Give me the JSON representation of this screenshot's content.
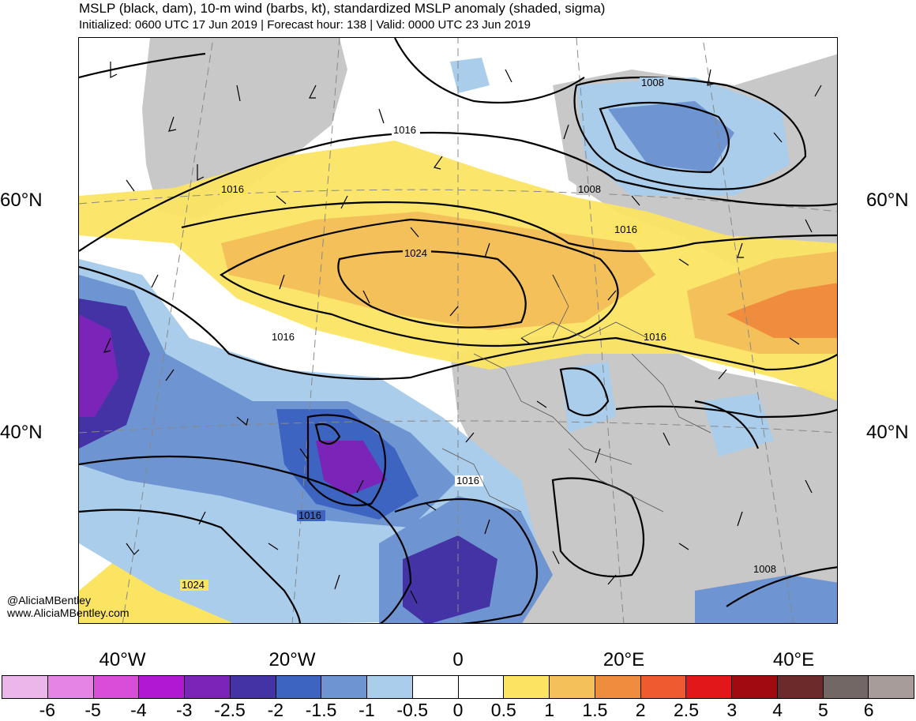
{
  "header": {
    "title": "MSLP (black, dam), 10-m wind (barbs, kt), standardized MSLP anomaly (shaded, sigma)",
    "subtitle": "Initialized: 0600 UTC 17 Jun 2019 | Forecast hour: 138 | Valid: 0000 UTC 23 Jun 2019"
  },
  "map": {
    "credit_handle": "@AliciaMBentley",
    "credit_url": "www.AliciaMBentley.com",
    "lat_labels": [
      "60°N",
      "40°N"
    ],
    "lon_labels": [
      "40°W",
      "20°W",
      "0",
      "20°E",
      "40°E"
    ],
    "isobar_labels": [
      "1008",
      "1016",
      "1016",
      "1008",
      "1024",
      "1016",
      "1016",
      "1016",
      "1016",
      "1016",
      "1024",
      "1008"
    ],
    "land_color": "#c8c8c8"
  },
  "colorbar": {
    "colors": [
      "#ebb6ea",
      "#e485e4",
      "#d94ed8",
      "#b118d2",
      "#7a24b8",
      "#4333a5",
      "#3e64c2",
      "#6e95d2",
      "#a9cdea",
      "#ffffff",
      "#ffffff",
      "#fbe462",
      "#f3c05a",
      "#ef8c3d",
      "#ef5a30",
      "#e1171a",
      "#a00a10",
      "#6c2a2a",
      "#736765",
      "#a89c9b"
    ],
    "labels": [
      "-6",
      "-5",
      "-4",
      "-3",
      "-2.5",
      "-2",
      "-1.5",
      "-1",
      "-0.5",
      "0",
      "0.5",
      "1",
      "1.5",
      "2",
      "2.5",
      "3",
      "4",
      "5",
      "6"
    ]
  }
}
